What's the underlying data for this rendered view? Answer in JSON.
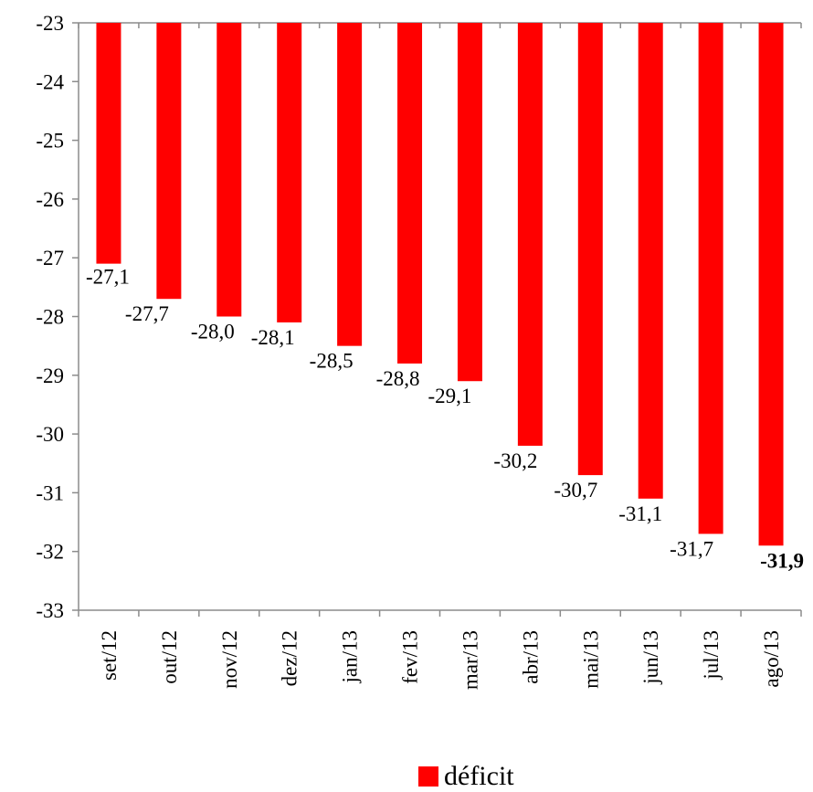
{
  "chart_data": {
    "type": "bar",
    "categories": [
      "set/12",
      "out/12",
      "nov/12",
      "dez/12",
      "jan/13",
      "fev/13",
      "mar/13",
      "abr/13",
      "mai/13",
      "jun/13",
      "jul/13",
      "ago/13"
    ],
    "series": [
      {
        "name": "déficit",
        "color": "#ff0000",
        "values": [
          -27.1,
          -27.7,
          -28.0,
          -28.1,
          -28.5,
          -28.8,
          -29.1,
          -30.2,
          -30.7,
          -31.1,
          -31.7,
          -31.9
        ],
        "data_labels": [
          "-27,1",
          "-27,7",
          "-28,0",
          "-28,1",
          "-28,5",
          "-28,8",
          "-29,1",
          "-30,2",
          "-30,7",
          "-31,1",
          "-31,7",
          "-31,9"
        ],
        "bold_label_index": 11
      }
    ],
    "ylim": [
      -33,
      -23
    ],
    "yticks": [
      -23,
      -24,
      -25,
      -26,
      -27,
      -28,
      -29,
      -30,
      -31,
      -32,
      -33
    ],
    "ytick_labels": [
      "-23",
      "-24",
      "-25",
      "-26",
      "-27",
      "-28",
      "-29",
      "-30",
      "-31",
      "-32",
      "-33"
    ],
    "bars_hang_from": -23,
    "grid": false,
    "legend_position": "bottom"
  },
  "legend": {
    "label": "déficit",
    "color": "#ff0000"
  }
}
